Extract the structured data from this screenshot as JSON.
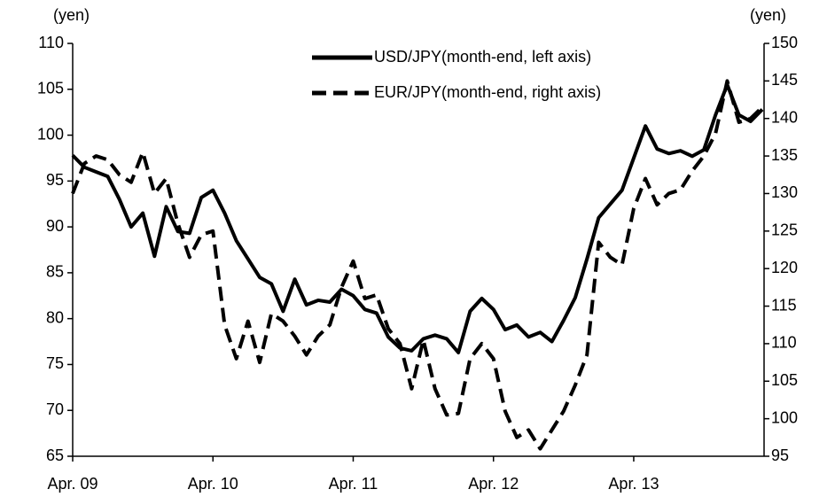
{
  "chart_data": {
    "type": "line",
    "y_label": "(yen)",
    "y2_label": "(yen)",
    "categories": [
      "Apr. 09",
      null,
      null,
      null,
      null,
      null,
      null,
      null,
      null,
      null,
      null,
      null,
      "Apr. 10",
      null,
      null,
      null,
      null,
      null,
      null,
      null,
      null,
      null,
      null,
      null,
      "Apr. 11",
      null,
      null,
      null,
      null,
      null,
      null,
      null,
      null,
      null,
      null,
      null,
      "Apr. 12",
      null,
      null,
      null,
      null,
      null,
      null,
      null,
      null,
      null,
      null,
      null,
      "Apr. 13",
      null,
      null,
      null,
      null,
      null,
      null,
      null,
      null,
      null,
      null,
      null
    ],
    "series": [
      {
        "name": "USD/JPY(month-end, left axis)",
        "color": "#000000",
        "dash": false,
        "values": [
          97.8,
          96.5,
          96,
          95.5,
          93,
          90,
          91.5,
          86.8,
          92.2,
          89.5,
          89.3,
          93.2,
          94,
          91.5,
          88.5,
          86.5,
          84.5,
          83.8,
          80.8,
          84.3,
          81.5,
          82,
          81.8,
          83.2,
          82.5,
          81,
          80.6,
          78,
          76.8,
          76.5,
          77.8,
          78.2,
          77.8,
          76.3,
          80.8,
          82.2,
          81,
          78.8,
          79.3,
          78,
          78.5,
          77.5,
          79.8,
          82.3,
          86.5,
          91,
          92.5,
          94,
          97.5,
          101,
          98.5,
          98,
          98.3,
          97.7,
          98.4,
          102.2,
          105.5,
          102.2,
          101.5,
          102.8
        ]
      },
      {
        "name": "EUR/JPY(month-end, right axis)",
        "color": "#000000",
        "dash": true,
        "axis": "y2",
        "values": [
          130,
          134,
          135,
          134.5,
          132.5,
          131.5,
          135.5,
          130,
          132,
          126,
          121.5,
          124.5,
          125,
          112.5,
          108,
          113,
          107.5,
          114,
          113,
          111,
          108.5,
          111,
          112.5,
          117.5,
          121,
          116,
          116.5,
          112,
          110,
          104,
          110.5,
          104,
          100.5,
          100.7,
          108,
          110,
          108,
          101,
          97.5,
          98.5,
          96,
          98.5,
          101,
          104.5,
          108.5,
          123.5,
          121.5,
          120.5,
          128,
          132,
          128.5,
          130,
          130.5,
          133,
          135,
          138,
          145,
          139.5,
          140,
          141.5
        ]
      }
    ],
    "ylim": [
      65,
      110
    ],
    "yticks": [
      65,
      70,
      75,
      80,
      85,
      90,
      95,
      100,
      105,
      110
    ],
    "y2lim": [
      95,
      150
    ],
    "y2ticks": [
      95,
      100,
      105,
      110,
      115,
      120,
      125,
      130,
      135,
      140,
      145,
      150
    ]
  }
}
